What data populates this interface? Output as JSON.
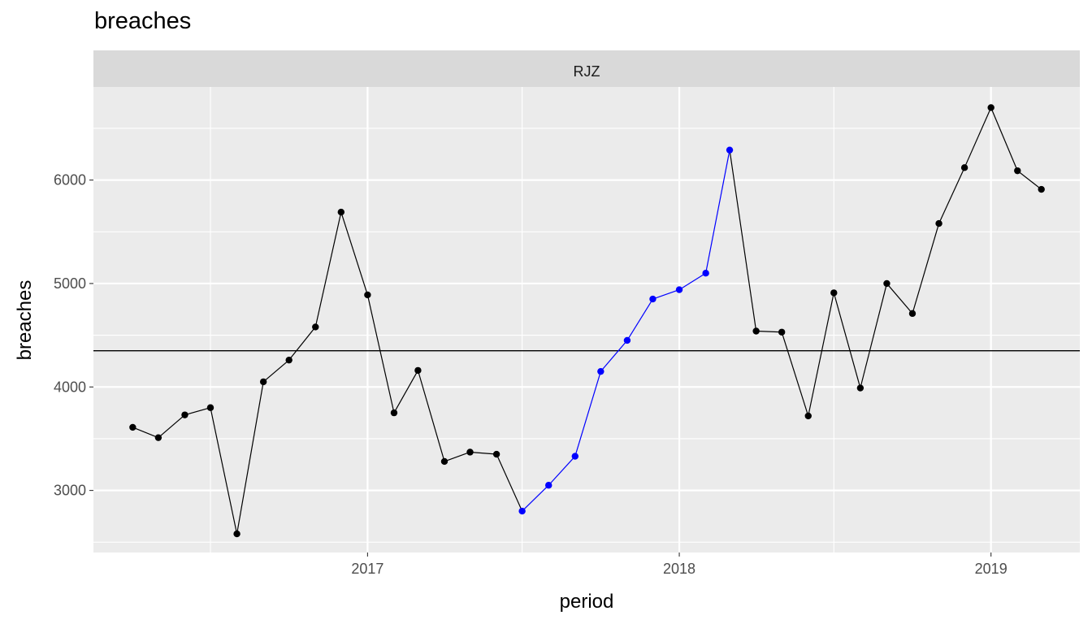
{
  "chart_data": {
    "type": "line",
    "title": "breaches",
    "facet_label": "RJZ",
    "xlabel": "period",
    "ylabel": "breaches",
    "x_ticks": [
      "2017",
      "2018",
      "2019"
    ],
    "y_ticks": [
      3000,
      4000,
      5000,
      6000
    ],
    "ylim": [
      2400,
      6900
    ],
    "xlim": [
      "2016-02-15",
      "2019-04-15"
    ],
    "grid": true,
    "reference_line": 4350,
    "colors": {
      "normal": "#000000",
      "highlight": "#0000ff",
      "panel": "#ebebeb",
      "strip": "#d9d9d9",
      "grid": "#ffffff"
    },
    "series": [
      {
        "x": [
          "2016-04-01",
          "2016-05-01",
          "2016-06-01",
          "2016-07-01",
          "2016-08-01",
          "2016-09-01",
          "2016-10-01",
          "2016-11-01",
          "2016-12-01",
          "2017-01-01",
          "2017-02-01",
          "2017-03-01",
          "2017-04-01",
          "2017-05-01",
          "2017-06-01",
          "2017-07-01",
          "2017-08-01",
          "2017-09-01",
          "2017-10-01",
          "2017-11-01",
          "2017-12-01",
          "2018-01-01",
          "2018-02-01",
          "2018-03-01",
          "2018-04-01",
          "2018-05-01",
          "2018-06-01",
          "2018-07-01",
          "2018-08-01",
          "2018-09-01",
          "2018-10-01",
          "2018-11-01",
          "2018-12-01",
          "2019-01-01",
          "2019-02-01",
          "2019-03-01"
        ],
        "values": [
          3610,
          3510,
          3730,
          3800,
          2580,
          4050,
          4260,
          4580,
          5690,
          4890,
          3750,
          4160,
          3280,
          3370,
          3350,
          2800,
          3050,
          3330,
          4150,
          4450,
          4850,
          4940,
          5100,
          6290,
          4540,
          4530,
          3720,
          4910,
          3990,
          5000,
          4710,
          5580,
          6120,
          6700,
          6090,
          5910
        ],
        "highlighted": [
          false,
          false,
          false,
          false,
          false,
          false,
          false,
          false,
          false,
          false,
          false,
          false,
          false,
          false,
          false,
          true,
          true,
          true,
          true,
          true,
          true,
          true,
          true,
          true,
          false,
          false,
          false,
          false,
          false,
          false,
          false,
          false,
          false,
          false,
          false,
          false
        ]
      }
    ]
  }
}
